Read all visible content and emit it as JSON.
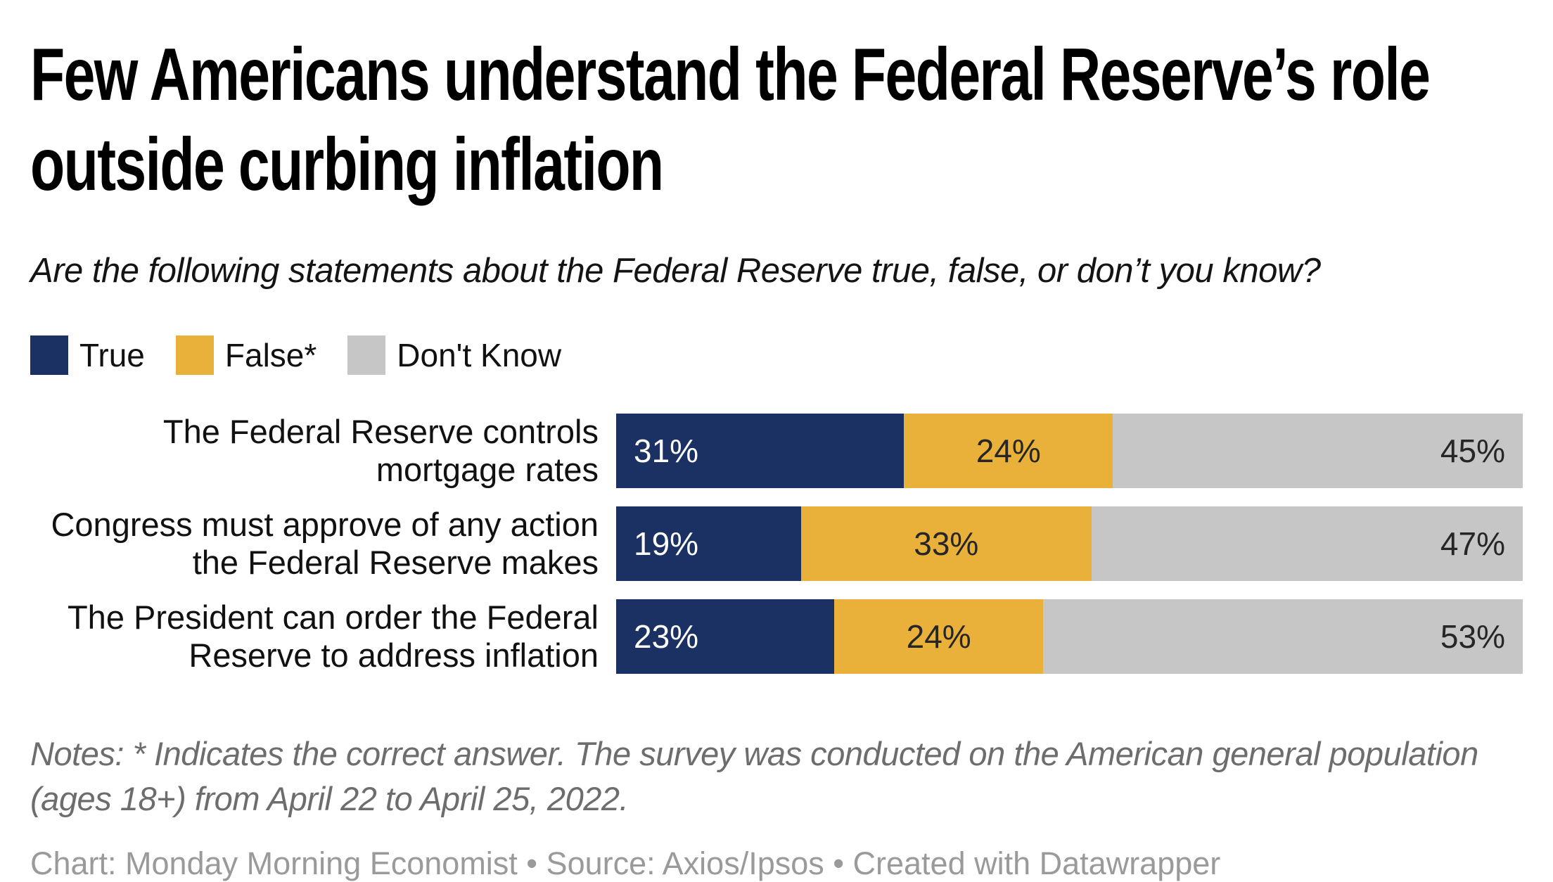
{
  "title_lines": [
    "Few Americans understand the Federal Reserve’s role",
    "outside curbing inflation"
  ],
  "subtitle": "Are the following statements about the Federal Reserve true, false, or don’t you know?",
  "notes": "Notes: * Indicates the correct answer. The survey was conducted on the American general population (ages 18+) from April 22 to April 25, 2022.",
  "source": "Chart: Monday Morning Economist • Source: Axios/Ipsos • Created with Datawrapper",
  "colors": {
    "true": "#1b3163",
    "false": "#e9b13a",
    "dont_know": "#c6c6c6",
    "label_on_dark": "#ffffff",
    "label_on_light": "#262626"
  },
  "chart_data": {
    "type": "bar",
    "orientation": "horizontal",
    "stacked": true,
    "value_suffix": "%",
    "xlim": [
      0,
      100
    ],
    "grid": false,
    "legend_position": "top-left",
    "categories": [
      "The Federal Reserve controls\nmortgage rates",
      "Congress must approve of any action\nthe Federal Reserve makes",
      "The President can order the Federal\nReserve to address inflation"
    ],
    "series": [
      {
        "name": "True",
        "color": "#1b3163",
        "values": [
          31,
          19,
          23
        ],
        "label_color": "#ffffff",
        "label_align": "left"
      },
      {
        "name": "False*",
        "color": "#e9b13a",
        "values": [
          24,
          33,
          24
        ],
        "label_color": "#262626",
        "label_align": "center"
      },
      {
        "name": "Don't Know",
        "color": "#c6c6c6",
        "values": [
          45,
          47,
          53
        ],
        "label_color": "#262626",
        "label_align": "right"
      }
    ],
    "title": "Few Americans understand the Federal Reserve’s role outside curbing inflation",
    "subtitle": "Are the following statements about the Federal Reserve true, false, or don’t you know?"
  }
}
